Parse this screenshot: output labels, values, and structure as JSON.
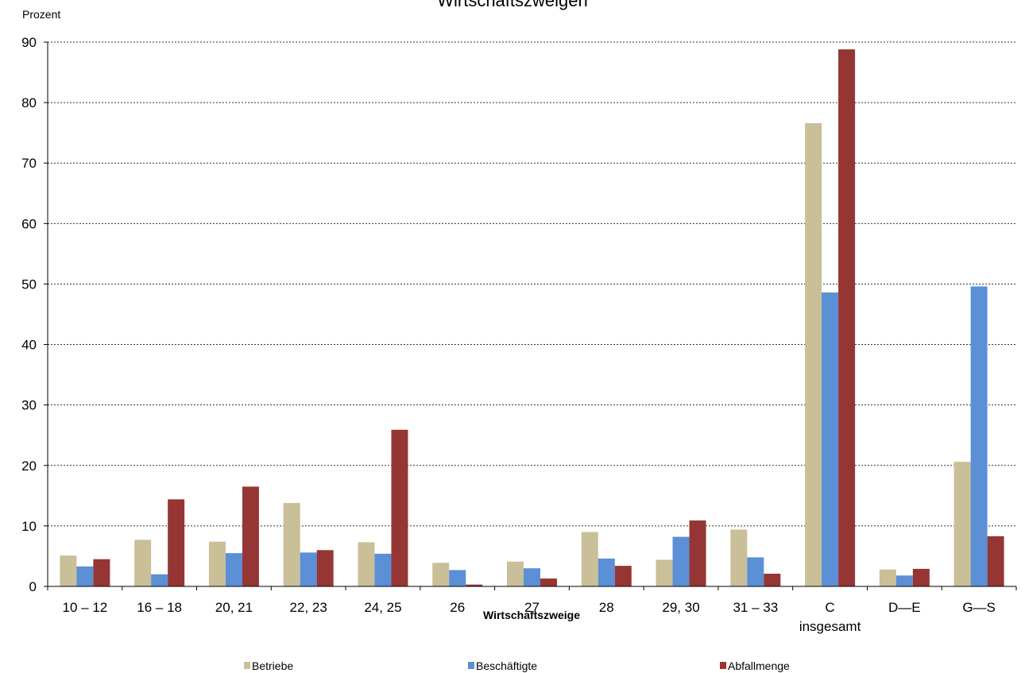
{
  "chart_data": {
    "type": "bar",
    "title": "Wirtschaftszweigen",
    "ylabel": "Prozent",
    "xlabel": "Wirtschaftszweige",
    "ylim": [
      0,
      90
    ],
    "yticks": [
      0,
      10,
      20,
      30,
      40,
      50,
      60,
      70,
      80,
      90
    ],
    "grid": true,
    "legend_position": "bottom",
    "categories": [
      "10 – 12",
      "16 – 18",
      "20, 21",
      "22, 23",
      "24, 25",
      "26",
      "27",
      "28",
      "29, 30",
      "31 – 33",
      "C\ninsgesamt",
      "D—E",
      "G—S"
    ],
    "series": [
      {
        "name": "Betriebe",
        "color": "#c9bf98",
        "values": [
          5.1,
          7.7,
          7.4,
          13.8,
          7.3,
          3.9,
          4.1,
          9.0,
          4.4,
          9.4,
          76.6,
          2.8,
          20.6
        ]
      },
      {
        "name": "Beschäftigte",
        "color": "#5b8fd6",
        "values": [
          3.3,
          2.0,
          5.5,
          5.6,
          5.4,
          2.7,
          3.0,
          4.6,
          8.2,
          4.8,
          48.6,
          1.8,
          49.6
        ]
      },
      {
        "name": "Abfallmenge",
        "color": "#963634",
        "values": [
          4.5,
          14.4,
          16.5,
          6.0,
          25.9,
          0.3,
          1.3,
          3.4,
          10.9,
          2.1,
          88.8,
          2.9,
          8.3
        ]
      }
    ]
  }
}
